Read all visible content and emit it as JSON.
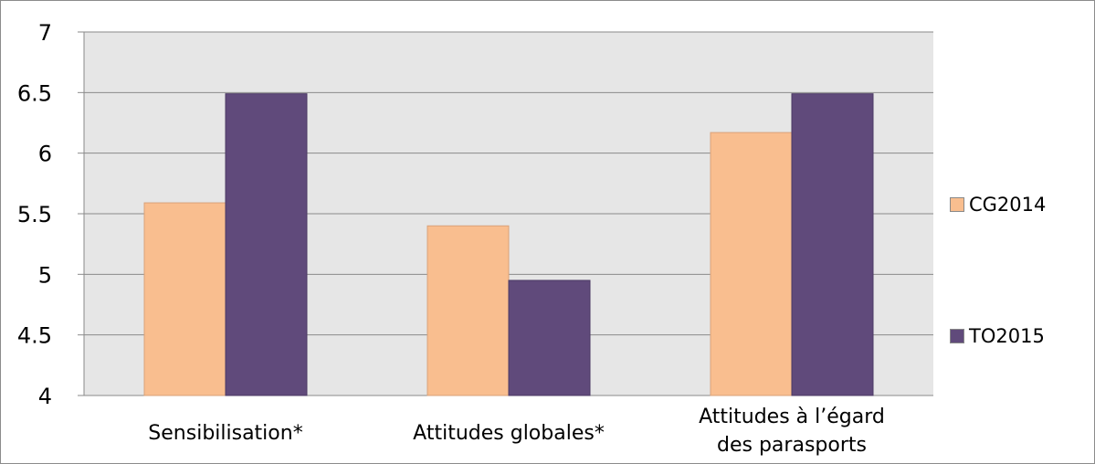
{
  "chart_data": {
    "type": "bar",
    "categories": [
      "Sensibilisation*",
      "Attitudes globales*",
      "Attitudes à l’égard des parasports"
    ],
    "series": [
      {
        "name": "CG2014",
        "values": [
          5.59,
          5.4,
          6.17
        ],
        "color": "#f9be8f"
      },
      {
        "name": "TO2015",
        "values": [
          6.49,
          4.95,
          6.49
        ],
        "color": "#604a7b"
      }
    ],
    "ylim": [
      4,
      7
    ],
    "yticks": [
      "4",
      "4.5",
      "5",
      "5.5",
      "6",
      "6.5",
      "7"
    ],
    "grid": true,
    "legend_position": "right",
    "plot_background": "#e6e6e6"
  }
}
